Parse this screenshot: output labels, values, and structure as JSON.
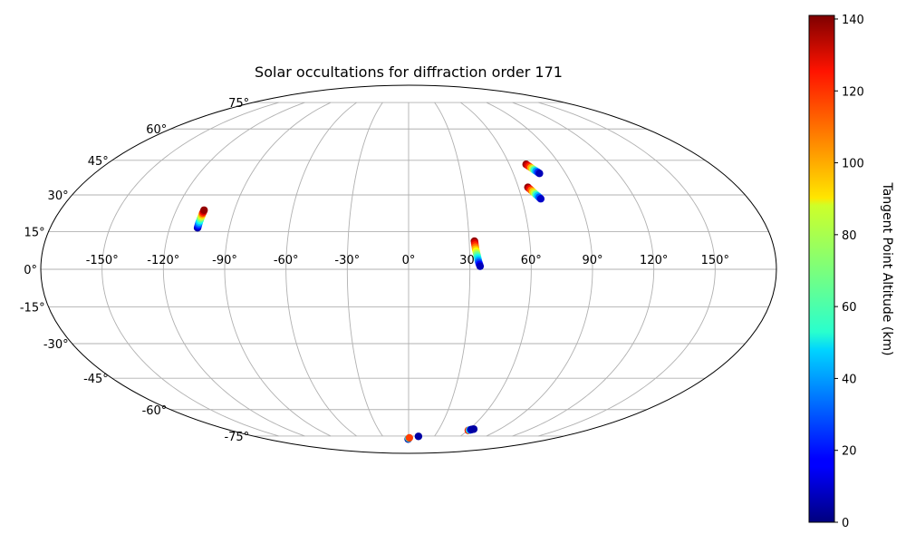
{
  "chart_data": {
    "type": "scatter",
    "projection": "mollweide",
    "title": "Solar occultations for diffraction order 171",
    "x_ticks": [
      "-150°",
      "-120°",
      "-90°",
      "-60°",
      "-30°",
      "0°",
      "30°",
      "60°",
      "90°",
      "120°",
      "150°"
    ],
    "y_ticks": [
      "75°",
      "60°",
      "45°",
      "30°",
      "15°",
      "0°",
      "-15°",
      "-30°",
      "-45°",
      "-60°",
      "-75°"
    ],
    "xlim": [
      -180,
      180
    ],
    "ylim": [
      -90,
      90
    ],
    "grid": true,
    "colormap": "jet",
    "colorbar": {
      "label": "Tangent Point Altitude (km)",
      "min": 0,
      "max": 141,
      "ticks": [
        "0",
        "20",
        "40",
        "60",
        "80",
        "100",
        "120",
        "140"
      ]
    },
    "series": [
      {
        "lon": [
          -106.0,
          -106.0,
          -106.0,
          -106.0,
          -106.0,
          -105.9,
          -105.9,
          -105.9,
          -105.8,
          -105.8,
          -105.8,
          -105.7,
          -105.7
        ],
        "lat": [
          16.5,
          17.1,
          17.7,
          18.3,
          18.9,
          19.5,
          20.1,
          20.7,
          21.3,
          21.9,
          22.5,
          23.1,
          23.7
        ],
        "alt": [
          5,
          15,
          25,
          35,
          45,
          55,
          65,
          75,
          85,
          100,
          115,
          128,
          138
        ]
      },
      {
        "lon": [
          32.6,
          32.7,
          32.8,
          32.9,
          33.0,
          33.2,
          33.4,
          33.6,
          33.8,
          34.0,
          34.2,
          34.4,
          34.7,
          35.0
        ],
        "lat": [
          11.2,
          10.4,
          9.6,
          8.8,
          8.0,
          7.2,
          6.4,
          5.6,
          4.8,
          4.0,
          3.3,
          2.6,
          1.9,
          1.2
        ],
        "alt": [
          138,
          128,
          118,
          108,
          98,
          88,
          78,
          68,
          58,
          48,
          38,
          28,
          18,
          8
        ]
      },
      {
        "lon": [
          70.0,
          70.6,
          71.2,
          71.8,
          72.4,
          73.0,
          73.7,
          74.4,
          75.0
        ],
        "lat": [
          43.2,
          42.7,
          42.2,
          41.7,
          41.2,
          40.7,
          40.2,
          39.7,
          39.2
        ],
        "alt": [
          138,
          128,
          118,
          100,
          80,
          60,
          40,
          25,
          8
        ]
      },
      {
        "lon": [
          65.2,
          65.8,
          66.4,
          67.0,
          67.6,
          68.2,
          68.8,
          69.4,
          70.0
        ],
        "lat": [
          33.2,
          32.6,
          32.0,
          31.4,
          30.8,
          30.2,
          29.6,
          29.0,
          28.4
        ],
        "alt": [
          138,
          125,
          110,
          95,
          80,
          62,
          45,
          30,
          10
        ]
      },
      {
        "lon": [
          -0.5,
          0.2,
          0.9
        ],
        "lat": [
          -77.0,
          -76.5,
          -76.2
        ],
        "alt": [
          5,
          60,
          115
        ]
      },
      {
        "lon": [
          11.5
        ],
        "lat": [
          -75.2
        ],
        "alt": [
          5
        ]
      },
      {
        "lon": [
          60.5,
          61.3,
          62.0,
          62.8,
          63.5,
          64.3
        ],
        "lat": [
          -71.5,
          -71.3,
          -71.1,
          -70.9,
          -70.8,
          -70.7
        ],
        "alt": [
          120,
          60,
          15,
          5,
          5,
          5
        ]
      }
    ]
  }
}
